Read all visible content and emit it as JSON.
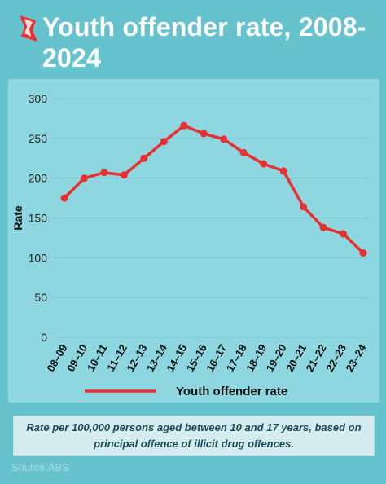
{
  "title": "Youth offender rate, 2008-2024",
  "brand_color": "#e8302f",
  "logo_icon": "sbs-logo-icon",
  "chart_data": {
    "type": "line",
    "title": "Youth offender rate, 2008-2024",
    "ylabel": "Rate",
    "xlabel": "",
    "ylim": [
      0,
      300
    ],
    "yticks": [
      0,
      50,
      100,
      150,
      200,
      250,
      300
    ],
    "grid": true,
    "categories": [
      "08–09",
      "09–10",
      "10–11",
      "11–12",
      "12–13",
      "13–14",
      "14–15",
      "15–16",
      "16–17",
      "17–18",
      "18–19",
      "19–20",
      "20–21",
      "21–22",
      "22–23",
      "23–24"
    ],
    "series": [
      {
        "name": "Youth offender rate",
        "color": "#e8302f",
        "values": [
          175,
          200,
          207,
          204,
          225,
          246,
          266,
          256,
          249,
          232,
          218,
          209,
          164,
          138,
          130,
          106
        ]
      }
    ],
    "legend_position": "bottom"
  },
  "note": "Rate per 100,000 persons aged between 10 and 17 years, based on principal offence of illicit drug offences.",
  "source": "Source:ABS"
}
